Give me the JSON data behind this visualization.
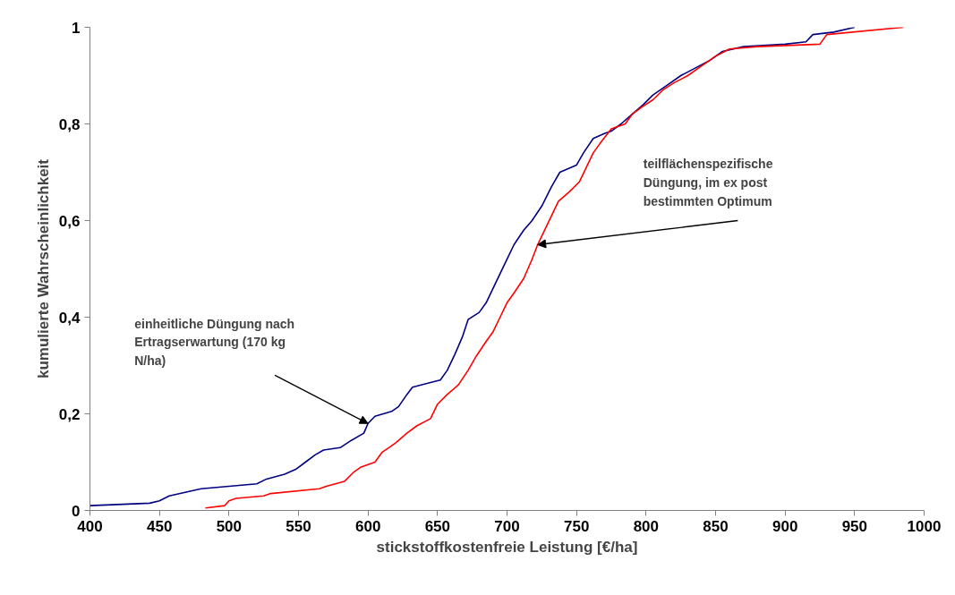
{
  "chart_data": {
    "type": "line",
    "xlabel": "stickstoffkostenfreie Leistung [€/ha]",
    "ylabel": "kumulierte Wahrscheinlichkeit",
    "xlim": [
      400,
      1000
    ],
    "xticks": [
      400,
      450,
      500,
      550,
      600,
      650,
      700,
      750,
      800,
      850,
      900,
      950,
      1000
    ],
    "ylim": [
      0,
      1
    ],
    "yticks": [
      0,
      {
        "value": 0.2,
        "label": "0,2"
      },
      {
        "value": 0.4,
        "label": "0,4"
      },
      {
        "value": 0.6,
        "label": "0,6"
      },
      {
        "value": 0.8,
        "label": "0,8"
      },
      1
    ],
    "grid": false,
    "line_style": "solid",
    "annotations": [
      {
        "text": "einheitliche Düngung nach Ertragserwartung (170 kg N/ha)",
        "x": 600,
        "y": 0.18
      },
      {
        "text": "teilflächenspezifische Düngung, im ex post bestimmten Optimum",
        "x": 722,
        "y": 0.55
      }
    ],
    "series": [
      {
        "color": "#000080",
        "x": [
          400,
          443,
          450,
          457,
          480,
          500,
          520,
          527,
          540,
          548,
          555,
          562,
          568,
          580,
          588,
          597,
          600,
          605,
          617,
          622,
          628,
          632,
          645,
          652,
          657,
          662,
          668,
          672,
          680,
          685,
          690,
          695,
          700,
          705,
          712,
          718,
          725,
          732,
          738,
          750,
          755,
          762,
          770,
          775,
          782,
          790,
          798,
          805,
          815,
          825,
          835,
          845,
          855,
          870,
          900,
          915,
          920,
          935,
          950
        ],
        "values": [
          0.01,
          0.015,
          0.02,
          0.03,
          0.045,
          0.05,
          0.055,
          0.065,
          0.075,
          0.085,
          0.1,
          0.115,
          0.125,
          0.13,
          0.145,
          0.16,
          0.18,
          0.195,
          0.205,
          0.215,
          0.24,
          0.255,
          0.265,
          0.27,
          0.29,
          0.32,
          0.36,
          0.395,
          0.41,
          0.43,
          0.46,
          0.49,
          0.52,
          0.55,
          0.58,
          0.6,
          0.63,
          0.67,
          0.7,
          0.715,
          0.74,
          0.77,
          0.78,
          0.785,
          0.8,
          0.82,
          0.84,
          0.86,
          0.88,
          0.9,
          0.915,
          0.93,
          0.95,
          0.96,
          0.965,
          0.97,
          0.985,
          0.99,
          1.0
        ]
      },
      {
        "color": "#ff0000",
        "x": [
          483,
          497,
          500,
          505,
          525,
          530,
          565,
          570,
          583,
          590,
          595,
          605,
          610,
          615,
          620,
          628,
          635,
          645,
          650,
          657,
          665,
          672,
          678,
          685,
          690,
          695,
          700,
          705,
          712,
          718,
          722,
          727,
          732,
          737,
          745,
          752,
          757,
          762,
          767,
          775,
          785,
          790,
          797,
          805,
          812,
          820,
          830,
          840,
          850,
          860,
          880,
          925,
          930,
          985
        ],
        "values": [
          0.005,
          0.01,
          0.02,
          0.025,
          0.03,
          0.035,
          0.045,
          0.05,
          0.06,
          0.08,
          0.09,
          0.1,
          0.12,
          0.13,
          0.14,
          0.16,
          0.175,
          0.19,
          0.22,
          0.24,
          0.26,
          0.29,
          0.32,
          0.35,
          0.37,
          0.4,
          0.43,
          0.45,
          0.48,
          0.52,
          0.55,
          0.58,
          0.61,
          0.64,
          0.66,
          0.68,
          0.71,
          0.74,
          0.76,
          0.79,
          0.8,
          0.82,
          0.835,
          0.85,
          0.87,
          0.885,
          0.9,
          0.92,
          0.94,
          0.955,
          0.96,
          0.965,
          0.985,
          1.0
        ]
      }
    ]
  }
}
